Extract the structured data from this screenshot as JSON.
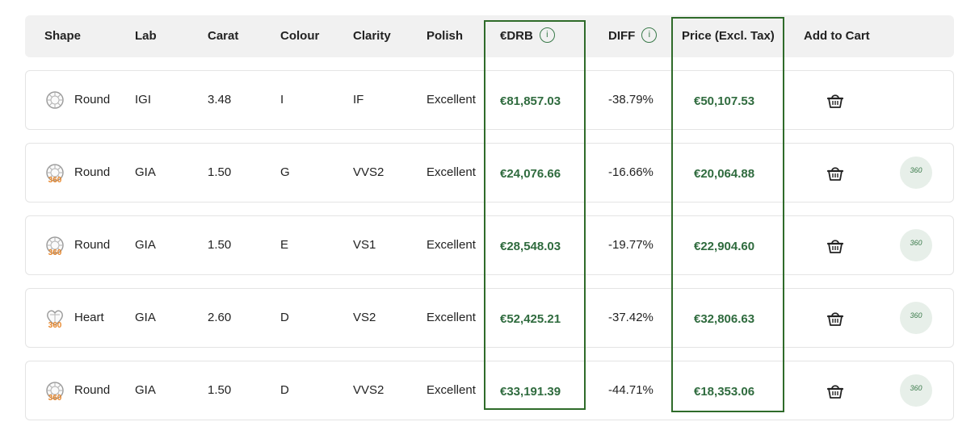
{
  "header": {
    "shape": "Shape",
    "lab": "Lab",
    "carat": "Carat",
    "colour": "Colour",
    "clarity": "Clarity",
    "polish": "Polish",
    "drb": "€DRB",
    "diff": "DIFF",
    "price": "Price (Excl. Tax)",
    "add_to_cart": "Add to Cart",
    "info_glyph": "i"
  },
  "badge_360": "360",
  "accent_color": "#2f6b3e",
  "rows": [
    {
      "shape": "Round",
      "lab": "IGI",
      "carat": "3.48",
      "colour": "I",
      "clarity": "IF",
      "polish": "Excellent",
      "drb": "€81,857.03",
      "diff": "-38.79%",
      "price": "€50,107.53"
    },
    {
      "shape": "Round",
      "lab": "GIA",
      "carat": "1.50",
      "colour": "G",
      "clarity": "VVS2",
      "polish": "Excellent",
      "drb": "€24,076.66",
      "diff": "-16.66%",
      "price": "€20,064.88"
    },
    {
      "shape": "Round",
      "lab": "GIA",
      "carat": "1.50",
      "colour": "E",
      "clarity": "VS1",
      "polish": "Excellent",
      "drb": "€28,548.03",
      "diff": "-19.77%",
      "price": "€22,904.60"
    },
    {
      "shape": "Heart",
      "lab": "GIA",
      "carat": "2.60",
      "colour": "D",
      "clarity": "VS2",
      "polish": "Excellent",
      "drb": "€52,425.21",
      "diff": "-37.42%",
      "price": "€32,806.63"
    },
    {
      "shape": "Round",
      "lab": "GIA",
      "carat": "1.50",
      "colour": "D",
      "clarity": "VVS2",
      "polish": "Excellent",
      "drb": "€33,191.39",
      "diff": "-44.71%",
      "price": "€18,353.06"
    }
  ]
}
